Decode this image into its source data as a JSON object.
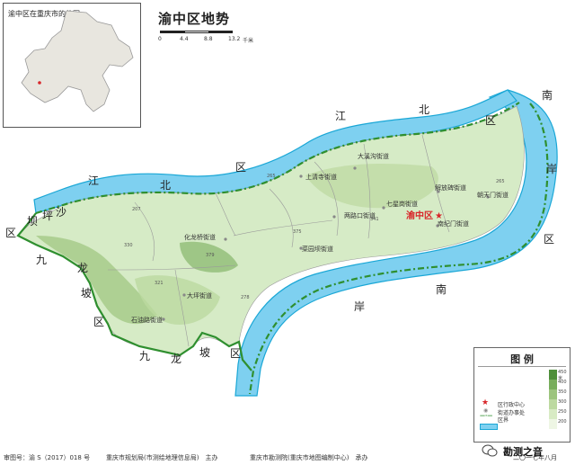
{
  "inset": {
    "title": "渝中区在重庆市的位图"
  },
  "title": "渝中区地势",
  "scale": {
    "ticks": [
      "0",
      "4.4",
      "8.8",
      "13.2"
    ],
    "unit": "千米"
  },
  "rivers": {
    "north_label": "江北区",
    "south_label": "南岸"
  },
  "edge_labels": [
    {
      "text": "江"
    },
    {
      "text": "北"
    },
    {
      "text": "区"
    },
    {
      "text": "江"
    },
    {
      "text": "北"
    },
    {
      "text": "区"
    },
    {
      "text": "南"
    },
    {
      "text": "岸"
    },
    {
      "text": "区"
    },
    {
      "text": "南"
    },
    {
      "text": "岸"
    },
    {
      "text": "区"
    },
    {
      "text": "坝"
    },
    {
      "text": "坪"
    },
    {
      "text": "沙"
    },
    {
      "text": "九"
    },
    {
      "text": "龙"
    },
    {
      "text": "坡"
    },
    {
      "text": "区"
    },
    {
      "text": "九"
    },
    {
      "text": "龙"
    },
    {
      "text": "坡"
    },
    {
      "text": "区"
    }
  ],
  "places": [
    {
      "name": "大溪沟街道"
    },
    {
      "name": "上清寺街道"
    },
    {
      "name": "解放碑街道"
    },
    {
      "name": "朝天门街道"
    },
    {
      "name": "两路口街道"
    },
    {
      "name": "七星岗街道"
    },
    {
      "name": "南纪门街道"
    },
    {
      "name": "化龙桥街道"
    },
    {
      "name": "菜园坝街道"
    },
    {
      "name": "大坪街道"
    },
    {
      "name": "石油路街道"
    }
  ],
  "capital": {
    "name": "渝中区"
  },
  "elevations": [
    "207",
    "265",
    "330",
    "341",
    "375",
    "379",
    "321",
    "278",
    "265"
  ],
  "legend": {
    "title": "图 例",
    "items": [
      {
        "label": "区行政中心"
      },
      {
        "label": "街道办事处"
      },
      {
        "label": "区界"
      },
      {
        "label": ""
      }
    ],
    "ramp": [
      "450米",
      "400",
      "350",
      "300",
      "250",
      "200"
    ],
    "ramp_colors": [
      "#4e8f3a",
      "#78ad5c",
      "#9cc47d",
      "#bcd9a0",
      "#d8ebc4",
      "#eef6e4"
    ]
  },
  "colors": {
    "water": "#7ed0f0",
    "river_edge": "#1aa7d6",
    "boundary": "#2f8f2f",
    "land": "#d6ebc6"
  },
  "footer": {
    "approval": "审图号：渝 S（2017）018 号",
    "sponsor": "重庆市规划局(市测绘地理信息局)　主办",
    "maker": "重庆市勘测院(重庆市地图编制中心)　承办",
    "date": "二〇一七年八月"
  },
  "brand": "勘测之音"
}
